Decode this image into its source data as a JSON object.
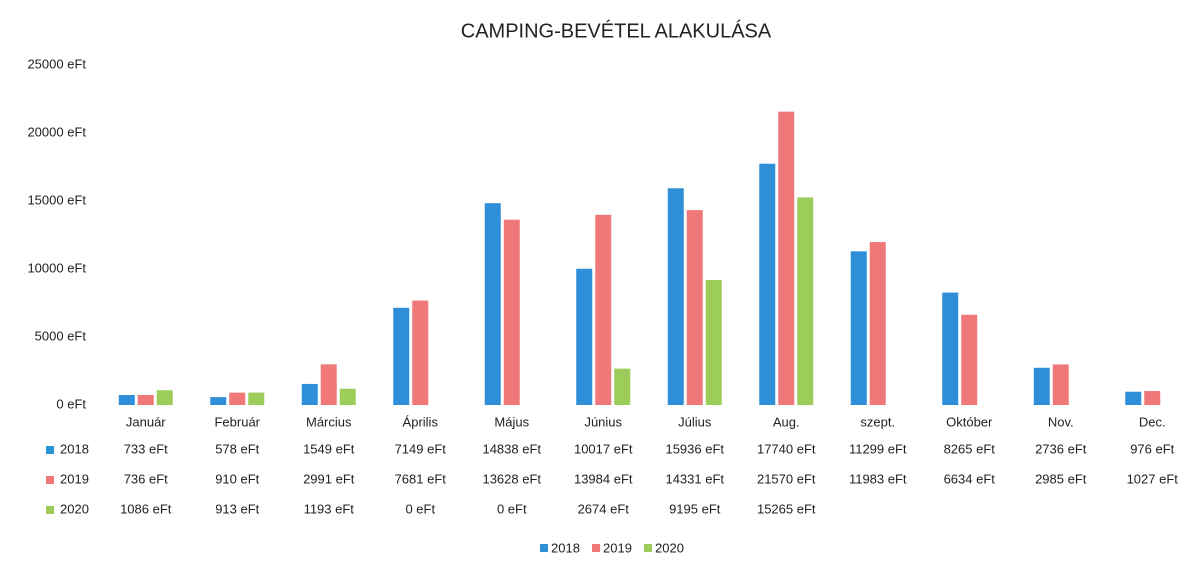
{
  "chart_data": {
    "type": "bar",
    "title": "CAMPING-BEVÉTEL ALAKULÁSA",
    "categories": [
      "Január",
      "Február",
      "Március",
      "Április",
      "Május",
      "Június",
      "Július",
      "Aug.",
      "szept.",
      "Október",
      "Nov.",
      "Dec."
    ],
    "series": [
      {
        "name": "2018",
        "color": "#2e8fd8",
        "values": [
          733,
          578,
          1549,
          7149,
          14838,
          10017,
          15936,
          17740,
          11299,
          8265,
          2736,
          976
        ],
        "value_labels": [
          "733 eFt",
          "578 eFt",
          "1549 eFt",
          "7149 eFt",
          "14838 eFt",
          "10017 eFt",
          "15936 eFt",
          "17740 eFt",
          "11299 eFt",
          "8265 eFt",
          "2736 eFt",
          "976 eFt"
        ]
      },
      {
        "name": "2019",
        "color": "#f07878",
        "values": [
          736,
          910,
          2991,
          7681,
          13628,
          13984,
          14331,
          21570,
          11983,
          6634,
          2985,
          1027
        ],
        "value_labels": [
          "736 eFt",
          "910 eFt",
          "2991 eFt",
          "7681 eFt",
          "13628 eFt",
          "13984 eFt",
          "14331 eFt",
          "21570 eFt",
          "11983 eFt",
          "6634 eFt",
          "2985 eFt",
          "1027 eFt"
        ]
      },
      {
        "name": "2020",
        "color": "#9ccc5a",
        "values": [
          1086,
          913,
          1193,
          0,
          0,
          2674,
          9195,
          15265,
          null,
          null,
          null,
          null
        ],
        "value_labels": [
          "1086 eFt",
          "913 eFt",
          "1193 eFt",
          "0 eFt",
          "0 eFt",
          "2674 eFt",
          "9195 eFt",
          "15265 eFt",
          null,
          null,
          null,
          null
        ]
      }
    ],
    "ylim": [
      0,
      25000
    ],
    "yticks": [
      {
        "value": 0,
        "label": "0 eFt"
      },
      {
        "value": 5000,
        "label": "5000 eFt"
      },
      {
        "value": 10000,
        "label": "10000 eFt"
      },
      {
        "value": 15000,
        "label": "15000 eFt"
      },
      {
        "value": 20000,
        "label": "20000 eFt"
      },
      {
        "value": 25000,
        "label": "25000 eFt"
      }
    ],
    "grid": false,
    "legend": "bottom"
  }
}
